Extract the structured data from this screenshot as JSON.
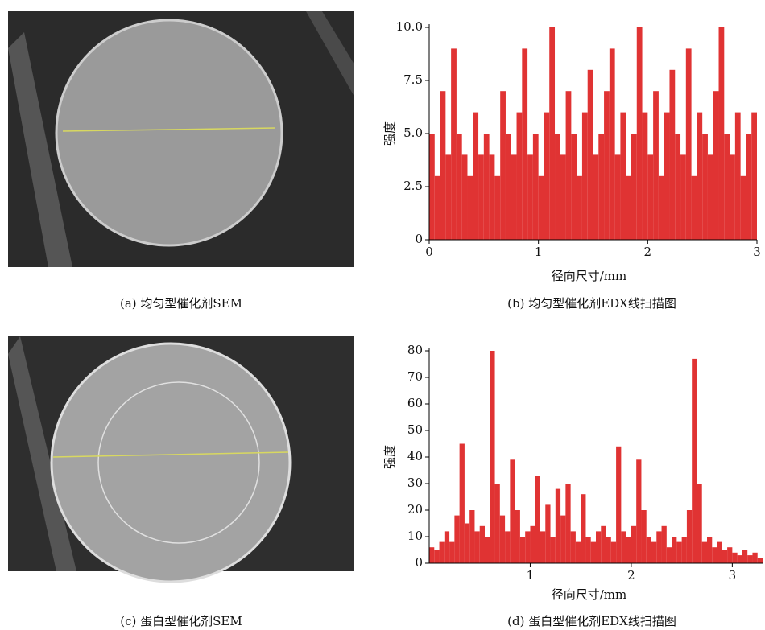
{
  "images": [
    {
      "caption": "(a) 均匀型催化剂SEM"
    },
    {
      "caption": "(c) 蛋白型催化剂SEM"
    }
  ],
  "chart_data": [
    {
      "type": "histogram",
      "caption": "(b) 均匀型催化剂EDX线扫描图",
      "xlabel": "径向尺寸/mm",
      "ylabel": "强度",
      "color": "#e03333",
      "bins": [
        0,
        0.05,
        0.1,
        0.15,
        0.2,
        0.25,
        0.3,
        0.35,
        0.4,
        0.45,
        0.5,
        0.55,
        0.6,
        0.65,
        0.7,
        0.75,
        0.8,
        0.85,
        0.9,
        0.95,
        1,
        1.05,
        1.1,
        1.15,
        1.2,
        1.25,
        1.3,
        1.35,
        1.4,
        1.45,
        1.5,
        1.55,
        1.6,
        1.65,
        1.7,
        1.75,
        1.8,
        1.85,
        1.9,
        1.95,
        2,
        2.05,
        2.1,
        2.15,
        2.2,
        2.25,
        2.3,
        2.35,
        2.4,
        2.45,
        2.5,
        2.55,
        2.6,
        2.65,
        2.7,
        2.75,
        2.8,
        2.85,
        2.9,
        2.95,
        3
      ],
      "values": [
        5,
        3,
        7,
        4,
        9,
        5,
        4,
        3,
        6,
        4,
        5,
        4,
        3,
        7,
        5,
        4,
        6,
        9,
        4,
        5,
        3,
        6,
        10,
        5,
        4,
        7,
        5,
        3,
        6,
        8,
        4,
        5,
        7,
        9,
        4,
        6,
        3,
        5,
        10,
        6,
        4,
        7,
        3,
        6,
        8,
        5,
        4,
        9,
        3,
        6,
        5,
        4,
        7,
        10,
        5,
        4,
        6,
        3,
        5,
        6
      ],
      "xlim": [
        0,
        3
      ],
      "xticks": [
        0,
        1,
        2,
        3
      ],
      "ylim": [
        0,
        10
      ],
      "yticks": [
        0,
        2.5,
        {
          "value": 5,
          "label": "5.0"
        },
        7.5,
        {
          "value": 10,
          "label": "10.0"
        }
      ]
    },
    {
      "type": "histogram",
      "caption": "(d) 蛋白型催化剂EDX线扫描图",
      "xlabel": "径向尺寸/mm",
      "ylabel": "强度",
      "color": "#e03333",
      "bins": [
        0,
        0.05,
        0.1,
        0.15,
        0.2,
        0.25,
        0.3,
        0.35,
        0.4,
        0.45,
        0.5,
        0.55,
        0.6,
        0.65,
        0.7,
        0.75,
        0.8,
        0.85,
        0.9,
        0.95,
        1,
        1.05,
        1.1,
        1.15,
        1.2,
        1.25,
        1.3,
        1.35,
        1.4,
        1.45,
        1.5,
        1.55,
        1.6,
        1.65,
        1.7,
        1.75,
        1.8,
        1.85,
        1.9,
        1.95,
        2,
        2.05,
        2.1,
        2.15,
        2.2,
        2.25,
        2.3,
        2.35,
        2.4,
        2.45,
        2.5,
        2.55,
        2.6,
        2.65,
        2.7,
        2.75,
        2.8,
        2.85,
        2.9,
        2.95,
        3,
        3.05,
        3.1,
        3.15,
        3.2,
        3.25,
        3.3
      ],
      "values": [
        6,
        5,
        8,
        12,
        8,
        18,
        45,
        15,
        20,
        12,
        14,
        10,
        80,
        30,
        18,
        12,
        39,
        20,
        10,
        12,
        14,
        33,
        12,
        22,
        10,
        28,
        18,
        30,
        12,
        8,
        26,
        10,
        8,
        12,
        14,
        10,
        8,
        44,
        12,
        10,
        14,
        39,
        20,
        10,
        8,
        12,
        14,
        6,
        10,
        8,
        10,
        20,
        77,
        30,
        8,
        10,
        6,
        8,
        5,
        6,
        4,
        3,
        5,
        3,
        4,
        2
      ],
      "xlim": [
        0,
        3.3
      ],
      "xticks": [
        1,
        2,
        3
      ],
      "ylim": [
        0,
        80
      ],
      "yticks": [
        0,
        10,
        20,
        30,
        40,
        50,
        60,
        70,
        80
      ]
    }
  ]
}
